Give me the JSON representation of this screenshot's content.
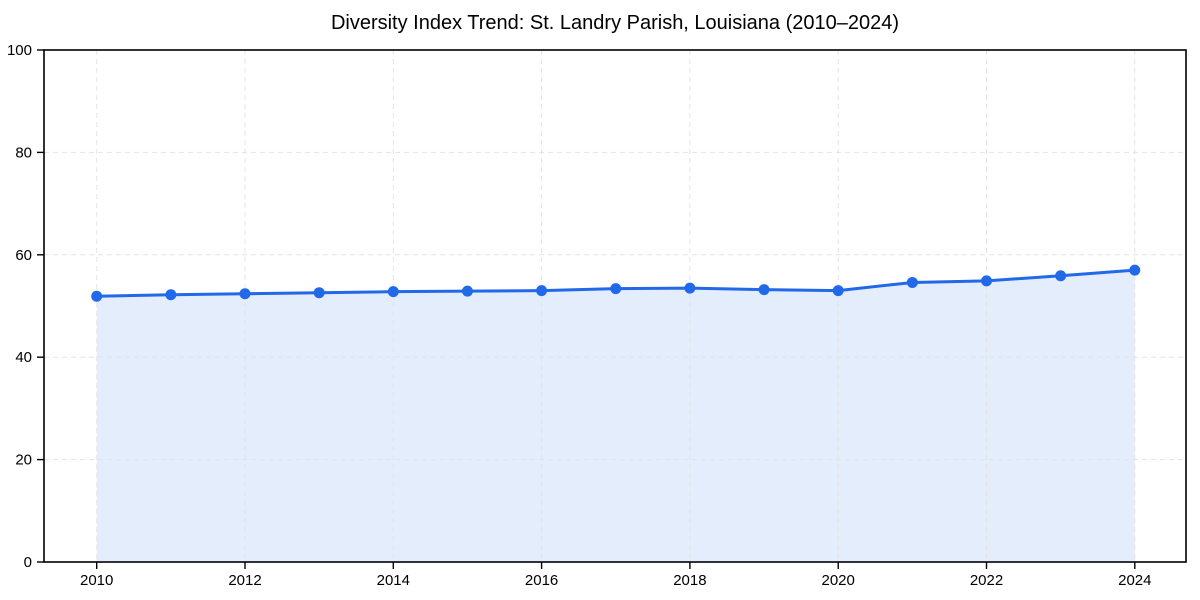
{
  "page": {
    "title": "Diversity Index Trend: St. Landry Parish, Louisiana (2010–2024)"
  },
  "chart_data": {
    "type": "line",
    "title": "Diversity Index Trend: St. Landry Parish, Louisiana (2010–2024)",
    "x": [
      2010,
      2011,
      2012,
      2013,
      2014,
      2015,
      2016,
      2017,
      2018,
      2019,
      2020,
      2021,
      2022,
      2023,
      2024
    ],
    "series": [
      {
        "name": "Diversity Index",
        "values": [
          51.9,
          52.2,
          52.4,
          52.6,
          52.8,
          52.9,
          53.0,
          53.4,
          53.5,
          53.2,
          53.0,
          54.6,
          54.9,
          55.9,
          57.0
        ]
      }
    ],
    "xlabel": "",
    "ylabel": "",
    "ylim": [
      0,
      100
    ],
    "xticks": [
      2010,
      2012,
      2014,
      2016,
      2018,
      2020,
      2022,
      2024
    ],
    "yticks": [
      0,
      20,
      40,
      60,
      80,
      100
    ],
    "grid": true,
    "grid_style": "dashed",
    "legend": "none",
    "area_fill": true,
    "marker": "circle",
    "colors": {
      "line": "#2169e8",
      "marker": "#2169e8",
      "area": "#e4edfb",
      "grid": "#e4e4e4",
      "axis": "#000000",
      "tick_label": "#000000",
      "background": "#ffffff"
    }
  }
}
